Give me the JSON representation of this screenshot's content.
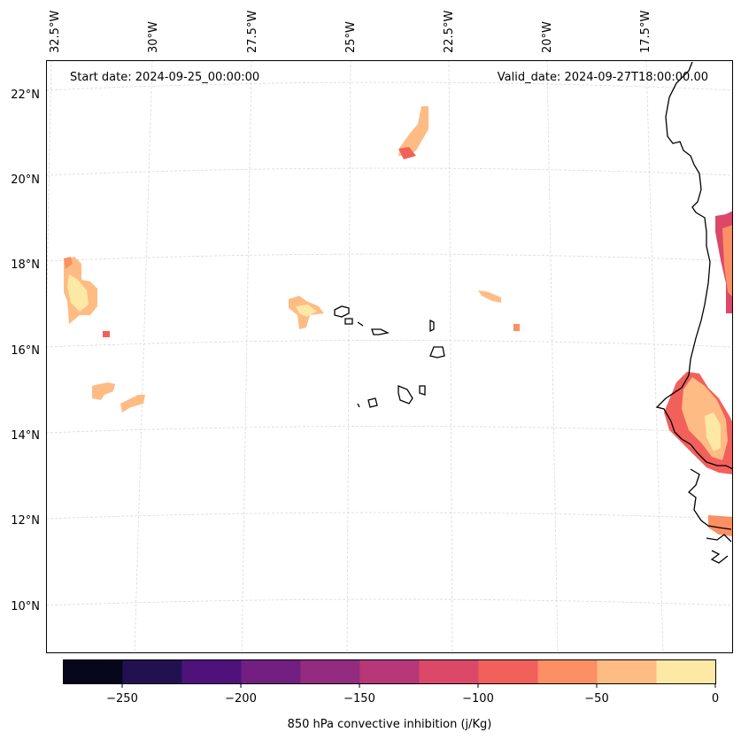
{
  "header": {
    "start_date": "Start date: 2024-09-25_00:00:00",
    "valid_date": "Valid_date: 2024-09-27T18:00:00.00"
  },
  "map": {
    "projection": "Lambert conformal",
    "lon_labels": [
      "32.5°W",
      "30°W",
      "27.5°W",
      "25°W",
      "22.5°W",
      "20°W",
      "17.5°W"
    ],
    "lat_labels": [
      "22°N",
      "20°N",
      "18°N",
      "16°N",
      "14°N",
      "12°N",
      "10°N"
    ],
    "gridlines": true,
    "gridline_color": "#d9d9d9",
    "coastline_color": "#000000"
  },
  "colorbar": {
    "label": "850 hPa convective inhibition (j/Kg)",
    "tick_labels": [
      "−250",
      "−200",
      "−150",
      "−100",
      "−50",
      "0"
    ],
    "levels": [
      -275,
      -250,
      -225,
      -200,
      -175,
      -150,
      -125,
      -100,
      -75,
      -50,
      -25,
      0
    ],
    "colors": [
      "#07061c",
      "#221150",
      "#4f127b",
      "#721f81",
      "#932b80",
      "#b73779",
      "#dc4868",
      "#f2605c",
      "#fc8f64",
      "#febc84",
      "#fde8a5"
    ]
  }
}
